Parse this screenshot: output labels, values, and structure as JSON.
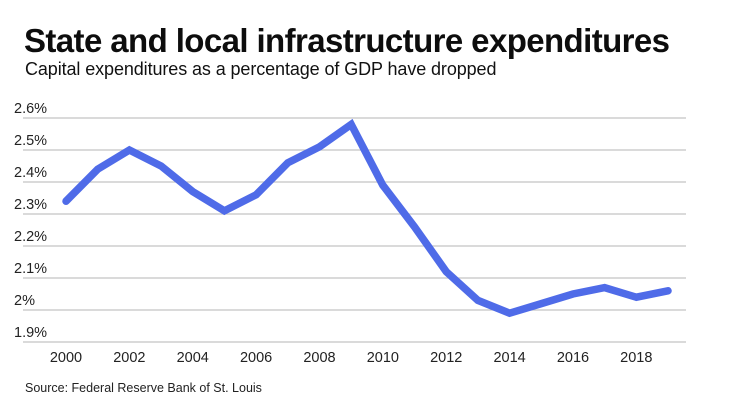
{
  "header": {
    "title": "State and local infrastructure expenditures",
    "subtitle": "Capital expenditures as a percentage of GDP have dropped"
  },
  "footer": {
    "source": "Source: Federal Reserve Bank of St. Louis"
  },
  "colors": {
    "line": "#4f6be8",
    "grid": "#c4c4c4",
    "text": "#111111",
    "background": "#ffffff"
  },
  "chart_data": {
    "type": "line",
    "title": "State and local infrastructure expenditures",
    "subtitle": "Capital expenditures as a percentage of GDP have dropped",
    "xlabel": "",
    "ylabel": "",
    "x": [
      2000,
      2001,
      2002,
      2003,
      2004,
      2005,
      2006,
      2007,
      2008,
      2009,
      2010,
      2011,
      2012,
      2013,
      2014,
      2015,
      2016,
      2017,
      2018,
      2019
    ],
    "series": [
      {
        "name": "Capital expenditures (% of GDP)",
        "values": [
          2.34,
          2.44,
          2.5,
          2.45,
          2.37,
          2.31,
          2.36,
          2.46,
          2.51,
          2.58,
          2.39,
          2.26,
          2.12,
          2.03,
          1.99,
          2.02,
          2.05,
          2.07,
          2.04,
          2.06
        ]
      }
    ],
    "xticks": [
      2000,
      2002,
      2004,
      2006,
      2008,
      2010,
      2012,
      2014,
      2016,
      2018
    ],
    "xtick_labels": [
      "2000",
      "2002",
      "2004",
      "2006",
      "2008",
      "2010",
      "2012",
      "2014",
      "2016",
      "2018"
    ],
    "yticks": [
      2.6,
      2.5,
      2.4,
      2.3,
      2.2,
      2.1,
      2.0,
      1.9
    ],
    "ytick_labels": [
      "2.6%",
      "2.5%",
      "2.4%",
      "2.3%",
      "2.2%",
      "2.1%",
      "2%",
      "1.9%"
    ],
    "ylim": [
      1.9,
      2.6
    ],
    "xlim": [
      2000,
      2019
    ],
    "grid": true,
    "legend": "none",
    "source": "Source: Federal Reserve Bank of St. Louis"
  }
}
